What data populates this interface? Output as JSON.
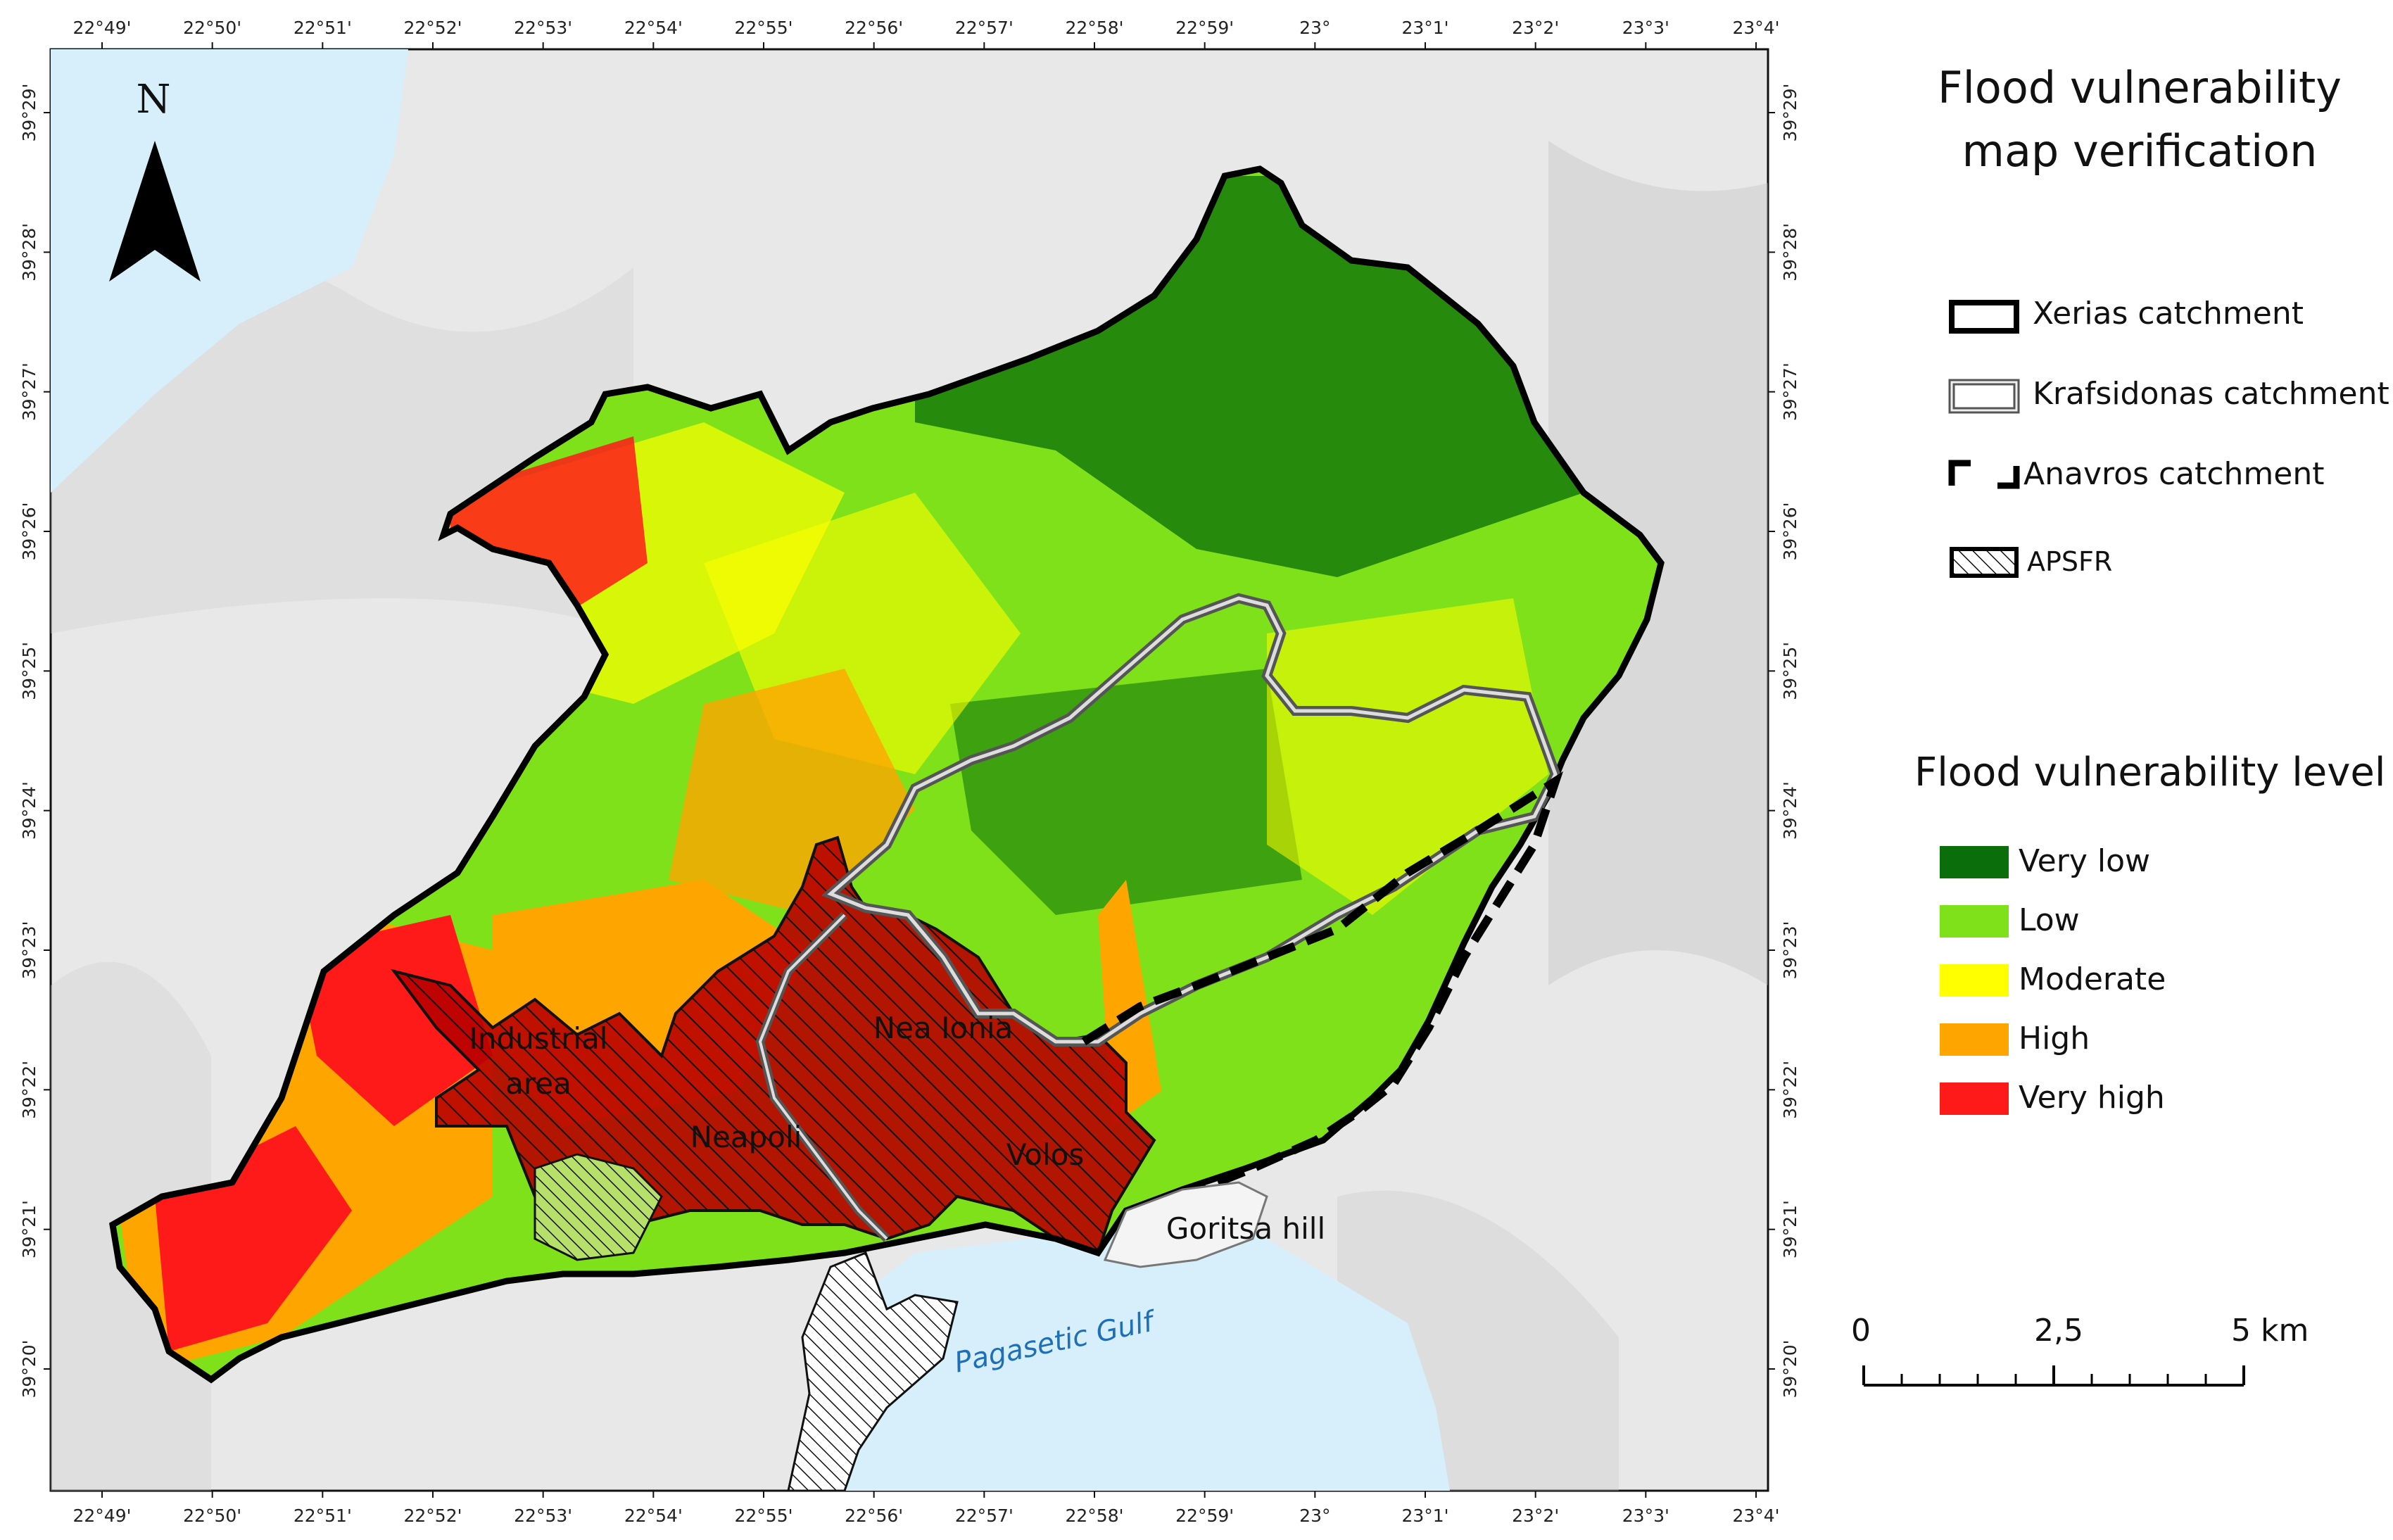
{
  "title": {
    "line1": "Flood vulnerability",
    "line2": "map verification"
  },
  "north_arrow": {
    "label": "N"
  },
  "catchment_legend": [
    {
      "label": "Xerias catchment",
      "symbol": "xerias"
    },
    {
      "label": "Krafsidonas catchment",
      "symbol": "krafsidonas"
    },
    {
      "label": "Anavros catchment",
      "symbol": "anavros"
    },
    {
      "label": "APSFR",
      "symbol": "apsfr"
    }
  ],
  "vulnerability_legend": {
    "title": "Flood vulnerability level",
    "items": [
      {
        "label": "Very low",
        "color": "#0a6e0a"
      },
      {
        "label": "Low",
        "color": "#7ee11a"
      },
      {
        "label": "Moderate",
        "color": "#ffff00"
      },
      {
        "label": "High",
        "color": "#ffa500"
      },
      {
        "label": "Very high",
        "color": "#ff1a1a"
      }
    ]
  },
  "scale_bar": {
    "labels": [
      "0",
      "2,5",
      "5 km"
    ]
  },
  "x_ticks": [
    "22°49'",
    "22°50'",
    "22°51'",
    "22°52'",
    "22°53'",
    "22°54'",
    "22°55'",
    "22°56'",
    "22°57'",
    "22°58'",
    "22°59'",
    "23°",
    "23°1'",
    "23°2'",
    "23°3'",
    "23°4'"
  ],
  "y_ticks": [
    "39°29'",
    "39°28'",
    "39°27'",
    "39°26'",
    "39°25'",
    "39°24'",
    "39°23'",
    "39°22'",
    "39°21'",
    "39°20'"
  ],
  "place_labels": {
    "industrial_1": "Industrial",
    "industrial_2": "area",
    "nea_ionia": "Nea Ionia",
    "neapoli": "Neapoli",
    "volos": "Volos",
    "goritsa": "Goritsa hill",
    "gulf": "Pagasetic Gulf"
  },
  "colors": {
    "sea": "#d6effa",
    "terrain": "#e6e6e6",
    "apsfr_fill": "#c00000"
  }
}
